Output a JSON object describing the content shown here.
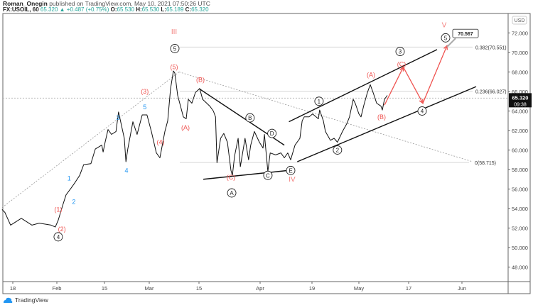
{
  "header": {
    "author": "Roman_Onegin",
    "published_text": "published on TradingView.com, May 10, 2021 07:50:26 UTC",
    "symbol": "FX:USOIL, 60",
    "last": "65.320",
    "change": "+0.487 (+0.75%)",
    "o_label": "O:",
    "o": "65.530",
    "h_label": "H:",
    "h": "65.530",
    "l_label": "L:",
    "l": "65.189",
    "c_label": "C:",
    "c": "65.320"
  },
  "footer": {
    "brand": "TradingView"
  },
  "colors": {
    "red": "#ef5350",
    "blue": "#2196f3",
    "price": "#111111",
    "grid": "#d6d6d6"
  },
  "chart_data": {
    "type": "line",
    "title": "FX:USOIL, 60",
    "currency": "USD",
    "x_unit": "days since Jan 18, 2021",
    "ylim": [
      47,
      73.5
    ],
    "y_ticks": [
      "72.000",
      "70.000",
      "68.000",
      "66.000",
      "64.000",
      "62.000",
      "60.000",
      "58.000",
      "56.000",
      "54.000",
      "52.000",
      "50.000",
      "48.000"
    ],
    "x_ticks": [
      {
        "day": 0,
        "label": "18"
      },
      {
        "day": 14,
        "label": "Feb"
      },
      {
        "day": 28,
        "label": "15"
      },
      {
        "day": 42,
        "label": "Mar"
      },
      {
        "day": 56,
        "label": "15"
      },
      {
        "day": 73,
        "label": "Apr"
      },
      {
        "day": 91,
        "label": "19"
      },
      {
        "day": 105,
        "label": "May"
      },
      {
        "day": 119,
        "label": "17"
      },
      {
        "day": 134,
        "label": "Jun"
      }
    ],
    "current_price": {
      "value": 65.32,
      "label": "65.320",
      "countdown": "09:38"
    },
    "price_series": [
      [
        -3.4,
        53.9
      ],
      [
        -2.5,
        53.6
      ],
      [
        -0.7,
        52.3
      ],
      [
        2.7,
        53.0
      ],
      [
        6.1,
        52.3
      ],
      [
        8.4,
        52.5
      ],
      [
        12.2,
        52.3
      ],
      [
        13.5,
        52.1
      ],
      [
        14.4,
        52.8
      ],
      [
        15.7,
        54.3
      ],
      [
        16.7,
        55.4
      ],
      [
        18.2,
        56.1
      ],
      [
        19.2,
        56.6
      ],
      [
        20.7,
        57.4
      ],
      [
        21.9,
        58.5
      ],
      [
        24,
        58.6
      ],
      [
        25.3,
        60.1
      ],
      [
        27.2,
        60.5
      ],
      [
        27.6,
        59.8
      ],
      [
        28.2,
        60.8
      ],
      [
        29.1,
        62.1
      ],
      [
        30.2,
        61.6
      ],
      [
        31.6,
        61.9
      ],
      [
        32.4,
        63.9
      ],
      [
        34.2,
        61.2
      ],
      [
        34.7,
        58.8
      ],
      [
        35.3,
        60.1
      ],
      [
        36.9,
        62.9
      ],
      [
        38.2,
        61.6
      ],
      [
        39.8,
        63.6
      ],
      [
        41.3,
        63.6
      ],
      [
        42.6,
        61.9
      ],
      [
        44,
        59.7
      ],
      [
        45,
        59.2
      ],
      [
        46.4,
        61.9
      ],
      [
        47.2,
        63.0
      ],
      [
        48,
        66.3
      ],
      [
        48.8,
        68.1
      ],
      [
        49.2,
        67.9
      ],
      [
        50,
        65.6
      ],
      [
        51.6,
        63.4
      ],
      [
        52.4,
        63.2
      ],
      [
        53,
        65.2
      ],
      [
        54,
        64.8
      ],
      [
        55,
        65.9
      ],
      [
        56.2,
        66.3
      ],
      [
        57,
        65.2
      ],
      [
        59,
        64.5
      ],
      [
        60,
        64.0
      ],
      [
        60.6,
        63.4
      ],
      [
        61,
        58.7
      ],
      [
        62,
        61.2
      ],
      [
        62.9,
        61.7
      ],
      [
        63.9,
        60.8
      ],
      [
        64.9,
        57.9
      ],
      [
        65.3,
        57.4
      ],
      [
        65.9,
        59.4
      ],
      [
        66.9,
        61.2
      ],
      [
        67.5,
        58.3
      ],
      [
        68.8,
        61.2
      ],
      [
        69.8,
        59.0
      ],
      [
        70.4,
        60.5
      ],
      [
        71.4,
        61.9
      ],
      [
        72.8,
        60.8
      ],
      [
        74,
        60.2
      ],
      [
        74.5,
        61.6
      ],
      [
        75.7,
        57.8
      ],
      [
        76.5,
        59.7
      ],
      [
        78.4,
        59.5
      ],
      [
        80.2,
        59.7
      ],
      [
        81.4,
        59.2
      ],
      [
        82.6,
        59.7
      ],
      [
        83.6,
        59.0
      ],
      [
        85.1,
        60.5
      ],
      [
        86.8,
        61.2
      ],
      [
        87.6,
        63.0
      ],
      [
        88.3,
        63.4
      ],
      [
        90,
        63.4
      ],
      [
        91.2,
        63.7
      ],
      [
        92.9,
        63.2
      ],
      [
        93.3,
        64.1
      ],
      [
        94.4,
        63.0
      ],
      [
        95,
        61.9
      ],
      [
        96.5,
        61.0
      ],
      [
        97.6,
        61.2
      ],
      [
        98.6,
        60.8
      ],
      [
        100.1,
        61.9
      ],
      [
        101.4,
        62.7
      ],
      [
        102.2,
        63.4
      ],
      [
        103.3,
        65.2
      ],
      [
        103.9,
        64.8
      ],
      [
        105,
        63.7
      ],
      [
        105.6,
        63.4
      ],
      [
        106.4,
        64.6
      ],
      [
        107.4,
        65.9
      ],
      [
        108.2,
        66.7
      ],
      [
        109,
        65.9
      ],
      [
        110,
        64.8
      ],
      [
        111.2,
        64.5
      ],
      [
        111.6,
        64.1
      ],
      [
        112.2,
        65.2
      ],
      [
        113,
        65.6
      ]
    ],
    "fib_levels": [
      {
        "ratio": "0.382",
        "value": 70.551,
        "label": "0.382(70.551)"
      },
      {
        "ratio": "0.236",
        "value": 66.027,
        "label": "0.236(66.027)"
      },
      {
        "ratio": "0",
        "value": 58.715,
        "label": "0(58.715)"
      }
    ],
    "trendlines": [
      {
        "name": "dotted-impulse-line",
        "style": "dotted",
        "points": [
          [
            -3.4,
            54.1
          ],
          [
            50.4,
            68.0
          ]
        ]
      },
      {
        "name": "dotted-fib-line",
        "style": "dotted",
        "points": [
          [
            50.4,
            68.0
          ],
          [
            137,
            58.8
          ]
        ]
      },
      {
        "name": "triangle-upper-line",
        "style": "solid",
        "points": [
          [
            56,
            66.3
          ],
          [
            81.4,
            60.5
          ]
        ]
      },
      {
        "name": "triangle-lower-line",
        "style": "solid",
        "points": [
          [
            57.2,
            57.0
          ],
          [
            82.6,
            57.9
          ]
        ]
      },
      {
        "name": "channel-upper-line",
        "style": "solid",
        "points": [
          [
            83,
            62.9
          ],
          [
            127,
            70.3
          ]
        ]
      },
      {
        "name": "channel-lower-line",
        "style": "solid",
        "points": [
          [
            85.9,
            58.8
          ],
          [
            138,
            66.5
          ]
        ]
      }
    ],
    "projection_path": [
      [
        112.2,
        64.6
      ],
      [
        117.5,
        68.5
      ],
      [
        123,
        64.8
      ],
      [
        129.8,
        70.7
      ]
    ],
    "target_callout": {
      "day": 129.8,
      "value": 70.567,
      "label": "70.567"
    },
    "annotations": [
      {
        "text": "III",
        "style": "red",
        "day": 49,
        "price": 72.1
      },
      {
        "text": "5",
        "style": "circle",
        "day": 49.2,
        "price": 70.4
      },
      {
        "text": "(5)",
        "style": "red",
        "day": 49,
        "price": 68.5
      },
      {
        "text": "(B)",
        "style": "red",
        "day": 56.4,
        "price": 67.2
      },
      {
        "text": "(3)",
        "style": "red",
        "day": 40.6,
        "price": 66.0
      },
      {
        "text": "5",
        "style": "blue",
        "day": 40.6,
        "price": 64.4
      },
      {
        "text": "3",
        "style": "blue",
        "day": 32.2,
        "price": 63.3
      },
      {
        "text": "(A)",
        "style": "red",
        "day": 52.2,
        "price": 62.3
      },
      {
        "text": "(4)",
        "style": "red",
        "day": 45.2,
        "price": 60.8
      },
      {
        "text": "4",
        "style": "blue",
        "day": 34.9,
        "price": 57.9
      },
      {
        "text": "1",
        "style": "blue",
        "day": 17.6,
        "price": 57.1
      },
      {
        "text": "2",
        "style": "blue",
        "day": 19,
        "price": 54.7
      },
      {
        "text": "(1)",
        "style": "red",
        "day": 14.4,
        "price": 53.9
      },
      {
        "text": "(2)",
        "style": "red",
        "day": 15.5,
        "price": 51.9
      },
      {
        "text": "4",
        "style": "circle",
        "day": 14.4,
        "price": 51.1
      },
      {
        "text": "B",
        "style": "circle",
        "day": 70.2,
        "price": 63.3
      },
      {
        "text": "D",
        "style": "circle",
        "day": 77.1,
        "price": 61.7
      },
      {
        "text": "E",
        "style": "circle",
        "day": 83.6,
        "price": 57.9
      },
      {
        "text": "(C)",
        "style": "red",
        "day": 64.9,
        "price": 57.2
      },
      {
        "text": "C",
        "style": "circle",
        "day": 75.7,
        "price": 57.4
      },
      {
        "text": "A",
        "style": "circle",
        "day": 65.1,
        "price": 55.6
      },
      {
        "text": "IV",
        "style": "red",
        "day": 84.1,
        "price": 57.0
      },
      {
        "text": "1",
        "style": "circle",
        "day": 93.1,
        "price": 65.0
      },
      {
        "text": "2",
        "style": "circle",
        "day": 98.6,
        "price": 60.0
      },
      {
        "text": "3",
        "style": "circle",
        "day": 116.6,
        "price": 70.1
      },
      {
        "text": "(A)",
        "style": "red",
        "day": 108.4,
        "price": 67.7
      },
      {
        "text": "(C)",
        "style": "red",
        "day": 117,
        "price": 68.8
      },
      {
        "text": "(B)",
        "style": "red",
        "day": 111.4,
        "price": 63.4
      },
      {
        "text": "4",
        "style": "circle",
        "day": 122.8,
        "price": 64.0
      },
      {
        "text": "V",
        "style": "red",
        "day": 129,
        "price": 72.8
      },
      {
        "text": "5",
        "style": "circle",
        "day": 129.4,
        "price": 71.5
      }
    ]
  }
}
